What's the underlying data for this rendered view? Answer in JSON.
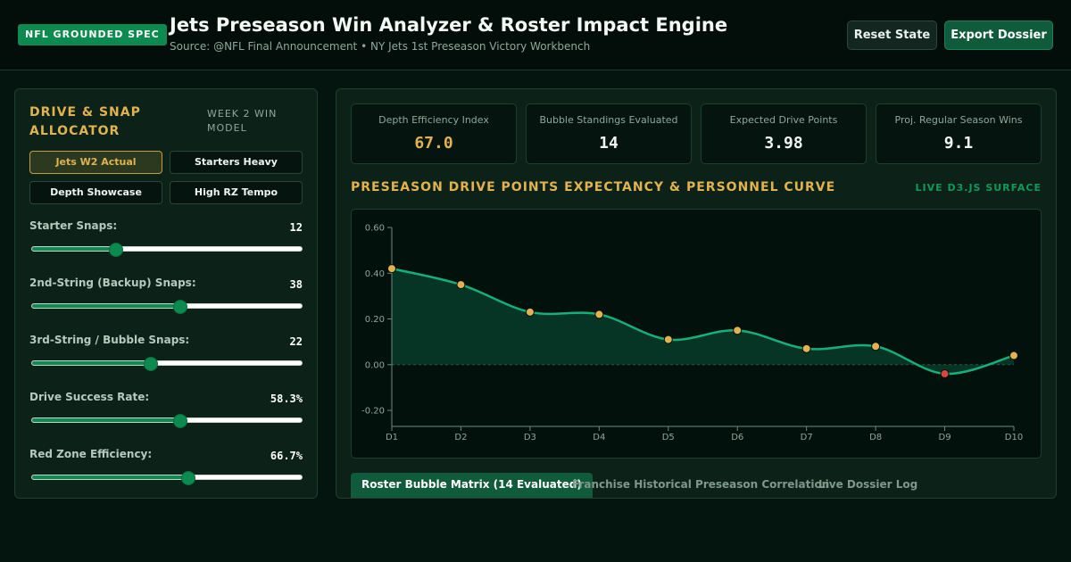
{
  "header": {
    "badge": "NFL GROUNDED SPEC",
    "title": "Jets Preseason Win Analyzer & Roster Impact Engine",
    "subtitle": "Source: @NFL Final Announcement • NY Jets 1st Preseason Victory Workbench",
    "reset_label": "Reset State",
    "export_label": "Export Dossier"
  },
  "allocator": {
    "title": "DRIVE & SNAP ALLOCATOR",
    "tag": "WEEK 2 WIN MODEL",
    "presets": [
      {
        "label": "Jets W2 Actual",
        "active": true
      },
      {
        "label": "Starters Heavy",
        "active": false
      },
      {
        "label": "Depth Showcase",
        "active": false
      },
      {
        "label": "High RZ Tempo",
        "active": false
      }
    ],
    "sliders": [
      {
        "label": "Starter Snaps:",
        "value": "12",
        "fraction": 0.31
      },
      {
        "label": "2nd-String (Backup) Snaps:",
        "value": "38",
        "fraction": 0.55
      },
      {
        "label": "3rd-String / Bubble Snaps:",
        "value": "22",
        "fraction": 0.44
      },
      {
        "label": "Drive Success Rate:",
        "value": "58.3%",
        "fraction": 0.549
      },
      {
        "label": "Red Zone Efficiency:",
        "value": "66.7%",
        "fraction": 0.578
      }
    ]
  },
  "kpis": [
    {
      "label": "Depth Efficiency Index",
      "value": "67.0",
      "accent": "gold"
    },
    {
      "label": "Bubble Standings Evaluated",
      "value": "14",
      "accent": "white"
    },
    {
      "label": "Expected Drive Points",
      "value": "3.98",
      "accent": "white"
    },
    {
      "label": "Proj. Regular Season Wins",
      "value": "9.1",
      "accent": "white"
    }
  ],
  "chart": {
    "title": "PRESEASON DRIVE POINTS EXPECTANCY & PERSONNEL CURVE",
    "tag": "LIVE D3.JS SURFACE"
  },
  "chart_data": {
    "type": "area",
    "categories": [
      "D1",
      "D2",
      "D3",
      "D4",
      "D5",
      "D6",
      "D7",
      "D8",
      "D9",
      "D10"
    ],
    "values": [
      0.42,
      0.35,
      0.23,
      0.22,
      0.11,
      0.15,
      0.07,
      0.08,
      -0.04,
      0.04
    ],
    "ylim": [
      -0.27,
      0.6
    ],
    "yticks": [
      "0.60",
      "0.40",
      "0.20",
      "0.00",
      "-0.20"
    ],
    "ytick_values": [
      0.6,
      0.4,
      0.2,
      0.0,
      -0.2
    ],
    "grid": false,
    "colors": {
      "line": "#15b07a",
      "area": "#073a28",
      "point_positive": "#e2b24e",
      "point_negative": "#d9483b",
      "axis": "#6c8a7c",
      "baseline": "#2d5546"
    }
  },
  "tabs": [
    {
      "label": "Roster Bubble Matrix (14 Evaluated)",
      "active": true
    },
    {
      "label": "Franchise Historical Preseason Correlation",
      "active": false
    },
    {
      "label": "Live Dossier Log",
      "active": false
    }
  ]
}
